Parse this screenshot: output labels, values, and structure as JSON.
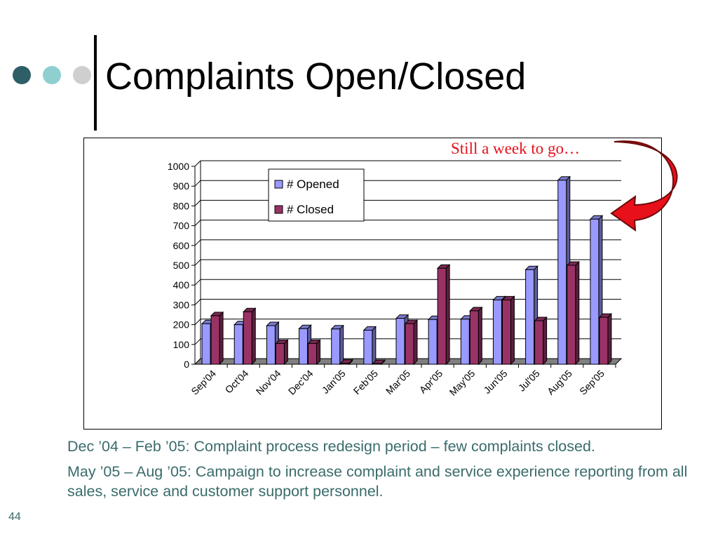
{
  "slide": {
    "title": "Complaints Open/Closed",
    "page_number": "44",
    "annotation": "Still a week to go…",
    "notes": [
      "Dec ’04 – Feb ’05: Complaint process redesign period – few complaints closed.",
      "May ’05 – Aug ’05: Campaign to increase complaint and service experience reporting from all sales, service and customer support personnel."
    ],
    "decor_colors": [
      "#2e5e66",
      "#8fcfd0",
      "#cfcfcf"
    ]
  },
  "chart_data": {
    "type": "bar",
    "title": "",
    "xlabel": "",
    "ylabel": "",
    "ylim": [
      0,
      1000
    ],
    "yticks": [
      0,
      100,
      200,
      300,
      400,
      500,
      600,
      700,
      800,
      900,
      1000
    ],
    "grid": true,
    "legend_position": "top-center",
    "categories": [
      "Sep'04",
      "Oct'04",
      "Nov'04",
      "Dec'04",
      "Jan'05",
      "Feb'05",
      "Mar'05",
      "Apr'05",
      "May'05",
      "Jun'05",
      "Jul'05",
      "Aug'05",
      "Sep'05"
    ],
    "series": [
      {
        "name": "# Opened",
        "color": "#9999ff",
        "values": [
          205,
          200,
          195,
          180,
          178,
          172,
          232,
          226,
          228,
          325,
          478,
          930,
          733
        ]
      },
      {
        "name": "# Closed",
        "color": "#993366",
        "values": [
          245,
          265,
          105,
          105,
          5,
          3,
          205,
          485,
          270,
          325,
          220,
          500,
          237
        ]
      }
    ]
  }
}
